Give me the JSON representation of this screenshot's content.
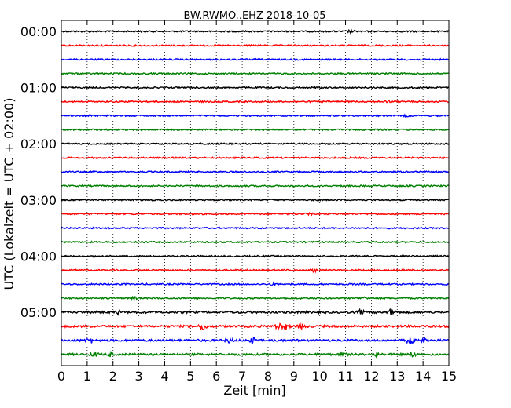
{
  "chart_data": {
    "type": "line",
    "title": "BW.RWMO..EHZ 2018-10-05",
    "xlabel": "Zeit  [min]",
    "ylabel": "UTC (Lokalzeit = UTC + 02:00)",
    "xlim": [
      0,
      15
    ],
    "x_ticks": [
      "0",
      "1",
      "2",
      "3",
      "4",
      "5",
      "6",
      "7",
      "8",
      "9",
      "10",
      "11",
      "12",
      "13",
      "14",
      "15"
    ],
    "y_tick_labels": [
      "00:00",
      "01:00",
      "02:00",
      "03:00",
      "04:00",
      "05:00"
    ],
    "trace_interval_minutes": 15,
    "trace_start_times": [
      "00:00",
      "00:15",
      "00:30",
      "00:45",
      "01:00",
      "01:15",
      "01:30",
      "01:45",
      "02:00",
      "02:15",
      "02:30",
      "02:45",
      "03:00",
      "03:15",
      "03:30",
      "03:45",
      "04:00",
      "04:15",
      "04:30",
      "04:45",
      "05:00",
      "05:15",
      "05:30",
      "05:45"
    ],
    "color_cycle": [
      "#000000",
      "#ff0000",
      "#0000ff",
      "#008000"
    ],
    "grid": "vertical dotted",
    "events": [
      {
        "trace": 0,
        "x": 11.2,
        "amp": 1.5
      },
      {
        "trace": 5,
        "x": 12.6,
        "amp": 1.0
      },
      {
        "trace": 6,
        "x": 13.4,
        "amp": 1.0
      },
      {
        "trace": 13,
        "x": 9.6,
        "amp": 1.2
      },
      {
        "trace": 17,
        "x": 9.8,
        "amp": 2.0
      },
      {
        "trace": 18,
        "x": 8.2,
        "amp": 2.0
      },
      {
        "trace": 19,
        "x": 2.8,
        "amp": 1.5
      },
      {
        "trace": 19,
        "x": 11.7,
        "amp": 1.2
      },
      {
        "trace": 20,
        "x": 2.2,
        "amp": 2.0
      },
      {
        "trace": 20,
        "x": 11.6,
        "amp": 2.5
      },
      {
        "trace": 20,
        "x": 12.8,
        "amp": 4.0
      },
      {
        "trace": 21,
        "x": 5.5,
        "amp": 5.0
      },
      {
        "trace": 21,
        "x": 8.4,
        "amp": 4.0
      },
      {
        "trace": 21,
        "x": 8.7,
        "amp": 3.0
      },
      {
        "trace": 21,
        "x": 9.3,
        "amp": 3.5
      },
      {
        "trace": 22,
        "x": 1.1,
        "amp": 3.5
      },
      {
        "trace": 22,
        "x": 6.5,
        "amp": 3.0
      },
      {
        "trace": 22,
        "x": 7.4,
        "amp": 3.5
      },
      {
        "trace": 22,
        "x": 13.5,
        "amp": 5.0
      },
      {
        "trace": 22,
        "x": 14.1,
        "amp": 3.0
      },
      {
        "trace": 23,
        "x": 1.3,
        "amp": 3.0
      },
      {
        "trace": 23,
        "x": 1.9,
        "amp": 2.0
      },
      {
        "trace": 23,
        "x": 10.9,
        "amp": 2.5
      },
      {
        "trace": 23,
        "x": 12.2,
        "amp": 2.5
      },
      {
        "trace": 23,
        "x": 13.6,
        "amp": 2.5
      }
    ]
  }
}
